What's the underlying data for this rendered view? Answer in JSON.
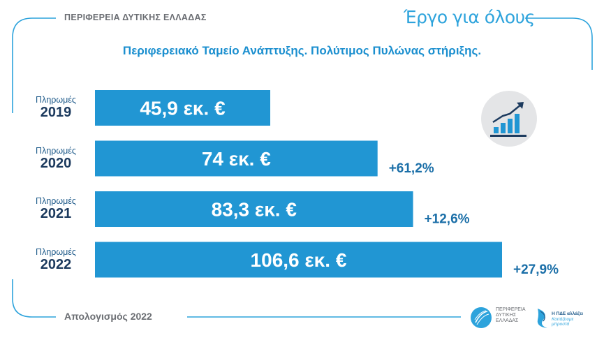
{
  "header": {
    "region": "ΠΕΡΙΦΕΡΕΙΑ ΔΥΤΙΚΗΣ ΕΛΛΑΔΑΣ",
    "slogan": "Έργο για όλους"
  },
  "footer": {
    "text": "Απολογισμός 2022",
    "logo1_lines": [
      "ΠΕΡΙΦΕΡΕΙΑ",
      "ΔΥΤΙΚΗΣ",
      "ΕΛΛΑΔΑΣ"
    ],
    "logo2_line1": "Η ΠΔΕ αλλάζει",
    "logo2_line2": "Κοιτάζουμε",
    "logo2_line3": "μπροστά"
  },
  "colors": {
    "bar": "#2196d3",
    "accent": "#2da3dc",
    "text_dark": "#1c3a5e"
  },
  "icon": "bar-growth-icon",
  "chart_data": {
    "type": "bar",
    "orientation": "horizontal",
    "title": "Περιφερειακό Ταμείο Ανάπτυξης. Πολύτιμος Πυλώνας στήριξης.",
    "category_label": "Πληρωμές",
    "categories": [
      "2019",
      "2020",
      "2021",
      "2022"
    ],
    "values": [
      45.9,
      74,
      83.3,
      106.6
    ],
    "value_labels": [
      "45,9 εκ. €",
      "74 εκ. €",
      "83,3 εκ. €",
      "106,6 εκ. €"
    ],
    "changes": [
      "",
      "+61,2%",
      "+12,6%",
      "+27,9%"
    ],
    "xlim": [
      0,
      106.6
    ]
  }
}
